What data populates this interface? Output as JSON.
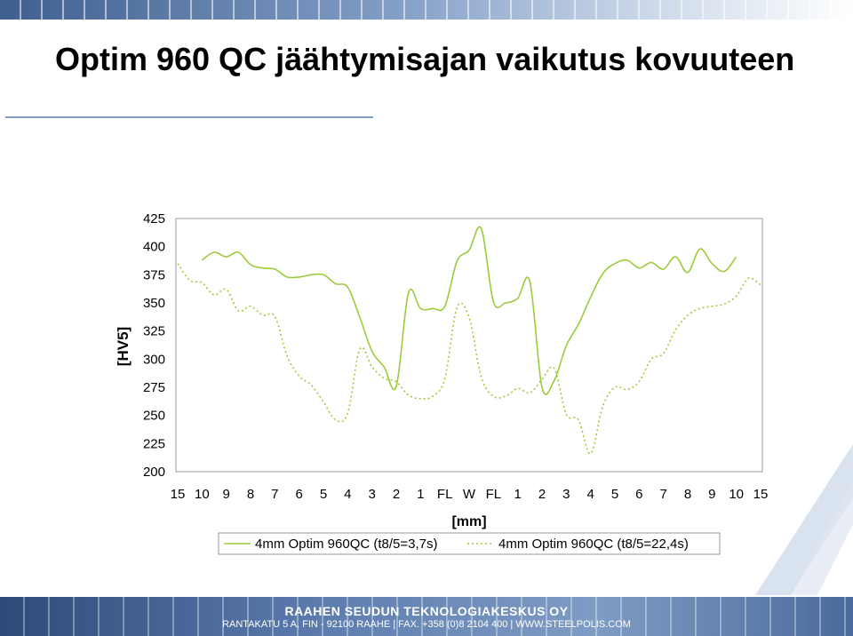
{
  "title": "Optim 960 QC jäähtymisajan vaikutus kovuuteen",
  "footer": {
    "company": "RAAHEN SEUDUN TEKNOLOGIAKESKUS OY",
    "address": "RANTAKATU 5 A, FIN - 92100 RAAHE | FAX. +358 (0)8 2104 400 | WWW.STEELPOLIS.COM"
  },
  "colors": {
    "series1": "#9ccb3b",
    "series2": "#9ccb3b",
    "header_band": "#3f5f8f",
    "footer_band": "#2e4a7a"
  },
  "chart_data": {
    "type": "line",
    "title": "",
    "xlabel": "[mm]",
    "ylabel": "[HV5]",
    "ylim": [
      200,
      425
    ],
    "yticks": [
      200,
      225,
      250,
      275,
      300,
      325,
      350,
      375,
      400,
      425
    ],
    "categories": [
      "15",
      "10",
      "9",
      "8",
      "7",
      "6",
      "5",
      "4",
      "3",
      "2",
      "1",
      "FL",
      "W",
      "FL",
      "1",
      "2",
      "3",
      "4",
      "5",
      "6",
      "7",
      "8",
      "9",
      "10",
      "15"
    ],
    "grid": false,
    "legend": "bottom",
    "series": [
      {
        "name": "4mm Optim 960QC (t8/5=3,7s)",
        "style": "solid",
        "points": [
          [
            1,
            388
          ],
          [
            1.5,
            395
          ],
          [
            2,
            391
          ],
          [
            2.5,
            395
          ],
          [
            3,
            384
          ],
          [
            3.5,
            381
          ],
          [
            4,
            380
          ],
          [
            4.5,
            373
          ],
          [
            5,
            373
          ],
          [
            5.5,
            375
          ],
          [
            6,
            375
          ],
          [
            6.5,
            367
          ],
          [
            7,
            364
          ],
          [
            7.5,
            337
          ],
          [
            8,
            307
          ],
          [
            8.5,
            293
          ],
          [
            9,
            276
          ],
          [
            9.5,
            359
          ],
          [
            10,
            345
          ],
          [
            10.5,
            345
          ],
          [
            11,
            347
          ],
          [
            11.5,
            387
          ],
          [
            12,
            397
          ],
          [
            12.5,
            416
          ],
          [
            13,
            351
          ],
          [
            13.5,
            350
          ],
          [
            14,
            354
          ],
          [
            14.5,
            369
          ],
          [
            15,
            275
          ],
          [
            15.5,
            281
          ],
          [
            16,
            312
          ],
          [
            16.5,
            331
          ],
          [
            17,
            355
          ],
          [
            17.5,
            376
          ],
          [
            18,
            385
          ],
          [
            18.5,
            388
          ],
          [
            19,
            381
          ],
          [
            19.5,
            386
          ],
          [
            20,
            380
          ],
          [
            20.5,
            391
          ],
          [
            21,
            377
          ],
          [
            21.5,
            398
          ],
          [
            22,
            385
          ],
          [
            22.5,
            378
          ],
          [
            23,
            391
          ]
        ]
      },
      {
        "name": "4mm Optim 960QC (t8/5=22,4s)",
        "style": "dotted",
        "points": [
          [
            0,
            385
          ],
          [
            0.5,
            370
          ],
          [
            1,
            368
          ],
          [
            1.5,
            357
          ],
          [
            2,
            362
          ],
          [
            2.5,
            343
          ],
          [
            3,
            347
          ],
          [
            3.5,
            339
          ],
          [
            4,
            338
          ],
          [
            4.5,
            303
          ],
          [
            5,
            285
          ],
          [
            5.5,
            277
          ],
          [
            6,
            262
          ],
          [
            6.5,
            246
          ],
          [
            7,
            252
          ],
          [
            7.5,
            309
          ],
          [
            8,
            293
          ],
          [
            8.5,
            283
          ],
          [
            9,
            280
          ],
          [
            9.5,
            268
          ],
          [
            10,
            265
          ],
          [
            10.5,
            267
          ],
          [
            11,
            283
          ],
          [
            11.5,
            346
          ],
          [
            12,
            337
          ],
          [
            12.5,
            284
          ],
          [
            13,
            267
          ],
          [
            13.5,
            267
          ],
          [
            14,
            274
          ],
          [
            14.5,
            270
          ],
          [
            15,
            282
          ],
          [
            15.5,
            292
          ],
          [
            16,
            251
          ],
          [
            16.5,
            246
          ],
          [
            17,
            216
          ],
          [
            17.5,
            258
          ],
          [
            18,
            275
          ],
          [
            18.5,
            273
          ],
          [
            19,
            280
          ],
          [
            19.5,
            300
          ],
          [
            20,
            305
          ],
          [
            20.5,
            326
          ],
          [
            21,
            339
          ],
          [
            21.5,
            345
          ],
          [
            22,
            347
          ],
          [
            22.5,
            349
          ],
          [
            23,
            356
          ],
          [
            23.5,
            372
          ],
          [
            24,
            366
          ]
        ]
      }
    ]
  }
}
